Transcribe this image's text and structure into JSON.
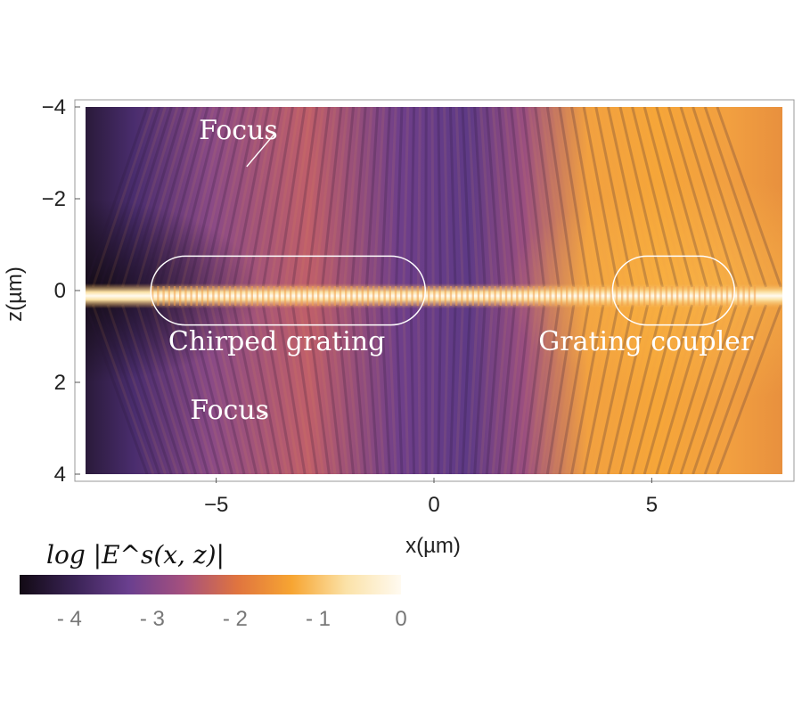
{
  "chart_data": {
    "type": "heatmap",
    "title": "",
    "xlabel": "x(µm)",
    "ylabel": "z(µm)",
    "xlim": [
      -8,
      8
    ],
    "ylim": [
      4,
      -4
    ],
    "x_ticks": [
      {
        "value": -5,
        "label": "−5"
      },
      {
        "value": 0,
        "label": "0"
      },
      {
        "value": 5,
        "label": "5"
      }
    ],
    "y_ticks": [
      {
        "value": -4,
        "label": "−4"
      },
      {
        "value": -2,
        "label": "−2"
      },
      {
        "value": 0,
        "label": "0"
      },
      {
        "value": 2,
        "label": "2"
      },
      {
        "value": 4,
        "label": "4"
      }
    ],
    "colorbar": {
      "title": "log |E^s(x, z)|",
      "range": [
        -4.6,
        0
      ],
      "ticks": [
        {
          "value": -4,
          "label": "- 4"
        },
        {
          "value": -3,
          "label": "- 3"
        },
        {
          "value": -2,
          "label": "- 2"
        },
        {
          "value": -1,
          "label": "- 1"
        },
        {
          "value": 0,
          "label": "0"
        }
      ],
      "colors": [
        "#120a14",
        "#3a2355",
        "#6a3f8f",
        "#a5507e",
        "#e0743f",
        "#f7a532",
        "#fbe2a8",
        "#fffaf0"
      ]
    },
    "annotations": [
      {
        "text": "Focus",
        "at": [
          -5.4,
          -3.3
        ],
        "arrow_to": [
          -4.3,
          -2.7
        ]
      },
      {
        "text": "Chirped grating",
        "at": [
          -6.1,
          1.3
        ]
      },
      {
        "text": "Grating coupler",
        "at": [
          2.4,
          1.3
        ]
      },
      {
        "text": "Focus",
        "at": [
          -5.6,
          2.8
        ],
        "arrow_to": [
          -4.0,
          2.75
        ]
      }
    ],
    "regions": [
      {
        "name": "chirped-grating",
        "x": [
          -6.5,
          -0.2
        ],
        "z": [
          -0.75,
          0.75
        ]
      },
      {
        "name": "grating-coupler",
        "x": [
          4.1,
          6.9
        ],
        "z": [
          -0.75,
          0.75
        ]
      }
    ]
  }
}
